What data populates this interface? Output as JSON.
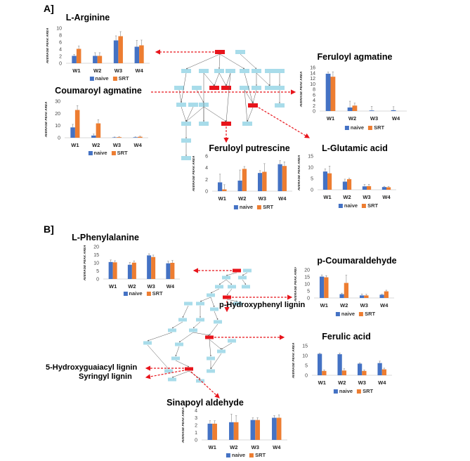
{
  "panels": {
    "a": "A]",
    "b": "B]"
  },
  "legend": {
    "naive": "naive",
    "srt": "SRT"
  },
  "colors": {
    "naive": "#4472C4",
    "srt": "#ED7D31",
    "node": "#a8dcea",
    "highlight": "#e8141b",
    "arrow": "#e8141b"
  },
  "annotations": {
    "p_hydroxyphenyl": "p-Hydroxyphenyl lignin",
    "hydroxyguaiacyl": "5-Hydroxyguaiacyl lignin",
    "syringyl": "Syringyl lignin"
  },
  "chart_data": [
    {
      "type": "bar",
      "title": "L-Arginine",
      "ylabel": "AVERAGE PEAK AREA",
      "categories": [
        "W1",
        "W2",
        "W3",
        "W4"
      ],
      "ylim": [
        0,
        10
      ],
      "yticks": [
        0,
        2,
        4,
        6,
        8,
        10
      ],
      "series": [
        {
          "name": "naive",
          "values": [
            2.1,
            2.1,
            6.5,
            4.7
          ],
          "errors": [
            0.4,
            0.9,
            1.3,
            1.8
          ]
        },
        {
          "name": "SRT",
          "values": [
            4.1,
            2.1,
            7.7,
            5.1
          ],
          "errors": [
            0.8,
            0.9,
            1.3,
            1.5
          ]
        }
      ]
    },
    {
      "type": "bar",
      "title": "Coumaroyl agmatine",
      "ylabel": "AVERAGE PEAK AREA",
      "categories": [
        "W1",
        "W2",
        "W3",
        "W4"
      ],
      "ylim": [
        0,
        30
      ],
      "yticks": [
        0,
        10,
        20,
        30
      ],
      "series": [
        {
          "name": "naive",
          "values": [
            8.5,
            1.8,
            0.3,
            0.4
          ],
          "errors": [
            2.5,
            1.2,
            0.3,
            0.3
          ]
        },
        {
          "name": "SRT",
          "values": [
            22.8,
            11.8,
            0.5,
            0.8
          ],
          "errors": [
            3.5,
            3.0,
            0.3,
            0.5
          ]
        }
      ]
    },
    {
      "type": "bar",
      "title": "Feruloyl agmatine",
      "ylabel": "AVERAGE PEAK AREA",
      "categories": [
        "W1",
        "W2",
        "W3",
        "W4"
      ],
      "ylim": [
        0,
        16
      ],
      "yticks": [
        0,
        2,
        4,
        6,
        8,
        10,
        12,
        14,
        16
      ],
      "series": [
        {
          "name": "naive",
          "values": [
            13.7,
            1.3,
            0.2,
            0.3
          ],
          "errors": [
            0.6,
            2.3,
            1.5,
            1.3
          ]
        },
        {
          "name": "SRT",
          "values": [
            12.6,
            2.0,
            0,
            0
          ],
          "errors": [
            1.8,
            0.9,
            0,
            0
          ]
        }
      ]
    },
    {
      "type": "bar",
      "title": "Feruloyl putrescine",
      "ylabel": "AVERAGE PEAK AREA",
      "categories": [
        "W1",
        "W2",
        "W3",
        "W4"
      ],
      "ylim": [
        0,
        6
      ],
      "yticks": [
        0,
        2,
        4,
        6
      ],
      "series": [
        {
          "name": "naive",
          "values": [
            1.5,
            1.8,
            3.1,
            4.6
          ],
          "errors": [
            1.4,
            1.8,
            0.4,
            0.6
          ]
        },
        {
          "name": "SRT",
          "values": [
            0.3,
            3.8,
            3.3,
            4.3
          ],
          "errors": [
            0.8,
            0.4,
            1.4,
            0.7
          ]
        }
      ]
    },
    {
      "type": "bar",
      "title": "L-Glutamic acid",
      "ylabel": "AVERAGE PEAK AREA",
      "categories": [
        "W1",
        "W2",
        "W3",
        "W4"
      ],
      "ylim": [
        0,
        15
      ],
      "yticks": [
        0,
        5,
        10,
        15
      ],
      "series": [
        {
          "name": "naive",
          "values": [
            8.1,
            3.6,
            1.5,
            1.2
          ],
          "errors": [
            1.2,
            1.1,
            0.8,
            0.3
          ]
        },
        {
          "name": "SRT",
          "values": [
            7.3,
            4.7,
            1.6,
            1.1
          ],
          "errors": [
            3.2,
            0.4,
            0.8,
            0.3
          ]
        }
      ]
    },
    {
      "type": "bar",
      "title": "L-Phenylalanine",
      "ylabel": "AVERAGE PEAK AREA",
      "categories": [
        "W1",
        "W2",
        "W3",
        "W4"
      ],
      "ylim": [
        0,
        20
      ],
      "yticks": [
        0,
        5,
        10,
        15,
        20
      ],
      "series": [
        {
          "name": "naive",
          "values": [
            10.5,
            8.8,
            14.6,
            9.7
          ],
          "errors": [
            1.3,
            1.5,
            1.0,
            1.3
          ]
        },
        {
          "name": "SRT",
          "values": [
            10.3,
            10.1,
            13.6,
            10.0
          ],
          "errors": [
            1.0,
            1.1,
            1.2,
            1.5
          ]
        }
      ]
    },
    {
      "type": "bar",
      "title": "p-Coumaraldehyde",
      "ylabel": "AVERAGE PEAK AREA",
      "categories": [
        "W1",
        "W2",
        "W3",
        "W4"
      ],
      "ylim": [
        0,
        20
      ],
      "yticks": [
        0,
        5,
        10,
        15,
        20
      ],
      "series": [
        {
          "name": "naive",
          "values": [
            15.2,
            2.7,
            1.8,
            2.3
          ],
          "errors": [
            1.2,
            0.7,
            1.0,
            0.4
          ]
        },
        {
          "name": "SRT",
          "values": [
            14.7,
            10.7,
            1.8,
            4.7
          ],
          "errors": [
            1.2,
            5.5,
            0.8,
            0.8
          ]
        }
      ]
    },
    {
      "type": "bar",
      "title": "Ferulic acid",
      "ylabel": "AVERAGE PEAK AREA",
      "categories": [
        "W1",
        "W2",
        "W3",
        "W4"
      ],
      "ylim": [
        0,
        15
      ],
      "yticks": [
        0,
        5,
        10,
        15
      ],
      "series": [
        {
          "name": "naive",
          "values": [
            10.9,
            10.7,
            5.9,
            6.2
          ],
          "errors": [
            0.3,
            0.6,
            0.4,
            1.0
          ]
        },
        {
          "name": "SRT",
          "values": [
            2.2,
            2.4,
            2.2,
            3.0
          ],
          "errors": [
            0.5,
            0.9,
            0.5,
            0.6
          ]
        }
      ]
    },
    {
      "type": "bar",
      "title": "Sinapoyl aldehyde",
      "ylabel": "AVERAGE PEAK AREA",
      "categories": [
        "W1",
        "W2",
        "W3",
        "W4"
      ],
      "ylim": [
        0,
        4
      ],
      "yticks": [
        0,
        1,
        2,
        3,
        4
      ],
      "series": [
        {
          "name": "naive",
          "values": [
            2.2,
            2.4,
            2.7,
            3.0
          ],
          "errors": [
            0.4,
            1.1,
            0.3,
            0.3
          ]
        },
        {
          "name": "SRT",
          "values": [
            2.2,
            2.4,
            2.7,
            3.0
          ],
          "errors": [
            0.4,
            0.9,
            0.3,
            0.4
          ]
        }
      ]
    }
  ]
}
